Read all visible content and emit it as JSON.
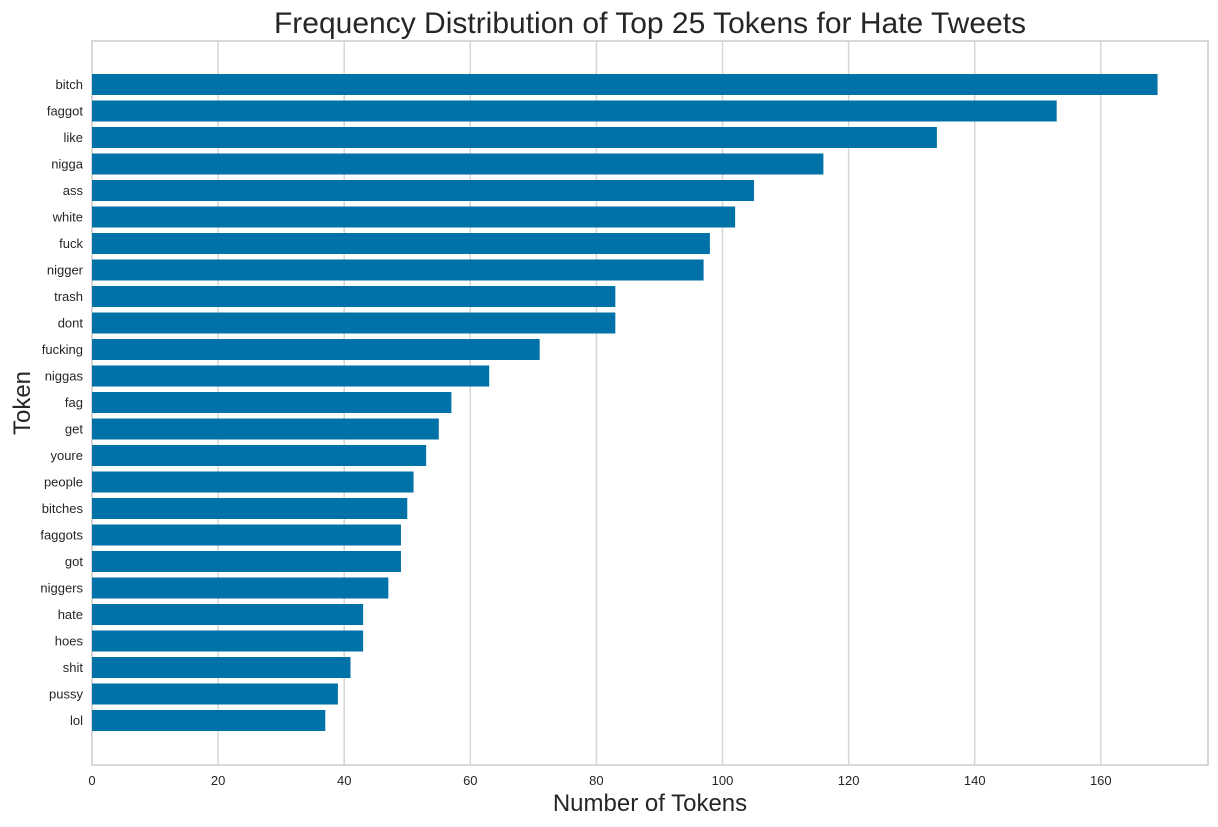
{
  "chart_data": {
    "type": "bar",
    "orientation": "horizontal",
    "title": "Frequency Distribution of Top 25 Tokens for Hate Tweets",
    "xlabel": "Number of Tokens",
    "ylabel": "Token",
    "categories": [
      "bitch",
      "faggot",
      "like",
      "nigga",
      "ass",
      "white",
      "fuck",
      "nigger",
      "trash",
      "dont",
      "fucking",
      "niggas",
      "fag",
      "get",
      "youre",
      "people",
      "bitches",
      "faggots",
      "got",
      "niggers",
      "hate",
      "hoes",
      "shit",
      "pussy",
      "lol"
    ],
    "values": [
      169,
      153,
      134,
      116,
      105,
      102,
      98,
      97,
      83,
      83,
      71,
      63,
      57,
      55,
      53,
      51,
      50,
      49,
      49,
      47,
      43,
      43,
      41,
      39,
      37
    ],
    "xlim": [
      0,
      177
    ],
    "xticks": [
      0,
      20,
      40,
      60,
      80,
      100,
      120,
      140,
      160
    ],
    "grid": "vertical",
    "bar_color": "#0072a7"
  }
}
